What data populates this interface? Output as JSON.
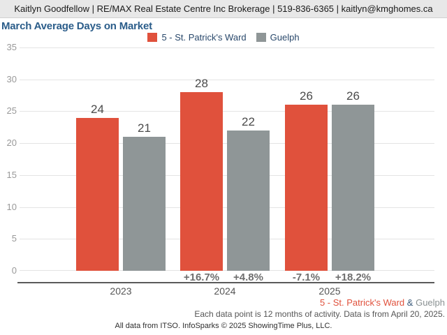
{
  "header": {
    "contact": "Kaitlyn Goodfellow | RE/MAX Real Estate Centre Inc Brokerage | 519-836-6365 | kaitlyn@kmghomes.ca"
  },
  "title": "March Average Days on Market",
  "colors": {
    "primary_series": "#e0513c",
    "secondary_series": "#8f9697",
    "title_text": "#2b5d8a"
  },
  "chart_data": {
    "type": "bar",
    "title": "March Average Days on Market",
    "categories": [
      "2023",
      "2024",
      "2025"
    ],
    "series": [
      {
        "name": "5 - St. Patrick's Ward",
        "color": "#e0513c",
        "values": [
          24,
          28,
          26
        ],
        "pct_change": [
          null,
          "+16.7%",
          "-7.1%"
        ]
      },
      {
        "name": "Guelph",
        "color": "#8f9697",
        "values": [
          21,
          22,
          26
        ],
        "pct_change": [
          null,
          "+4.8%",
          "+18.2%"
        ]
      }
    ],
    "ylabel": "",
    "xlabel": "",
    "ylim": [
      0,
      35
    ],
    "yticks": [
      0,
      5,
      10,
      15,
      20,
      25,
      30,
      35
    ],
    "grid": true,
    "legend_position": "top"
  },
  "footer": {
    "series_note": {
      "primary": "5 - St. Patrick's Ward",
      "separator": " & ",
      "secondary": "Guelph"
    },
    "data_note": "Each data point is 12 months of activity. Data is from April 20, 2025.",
    "attribution": "All data from ITSO. InfoSparks © 2025 ShowingTime Plus, LLC."
  }
}
